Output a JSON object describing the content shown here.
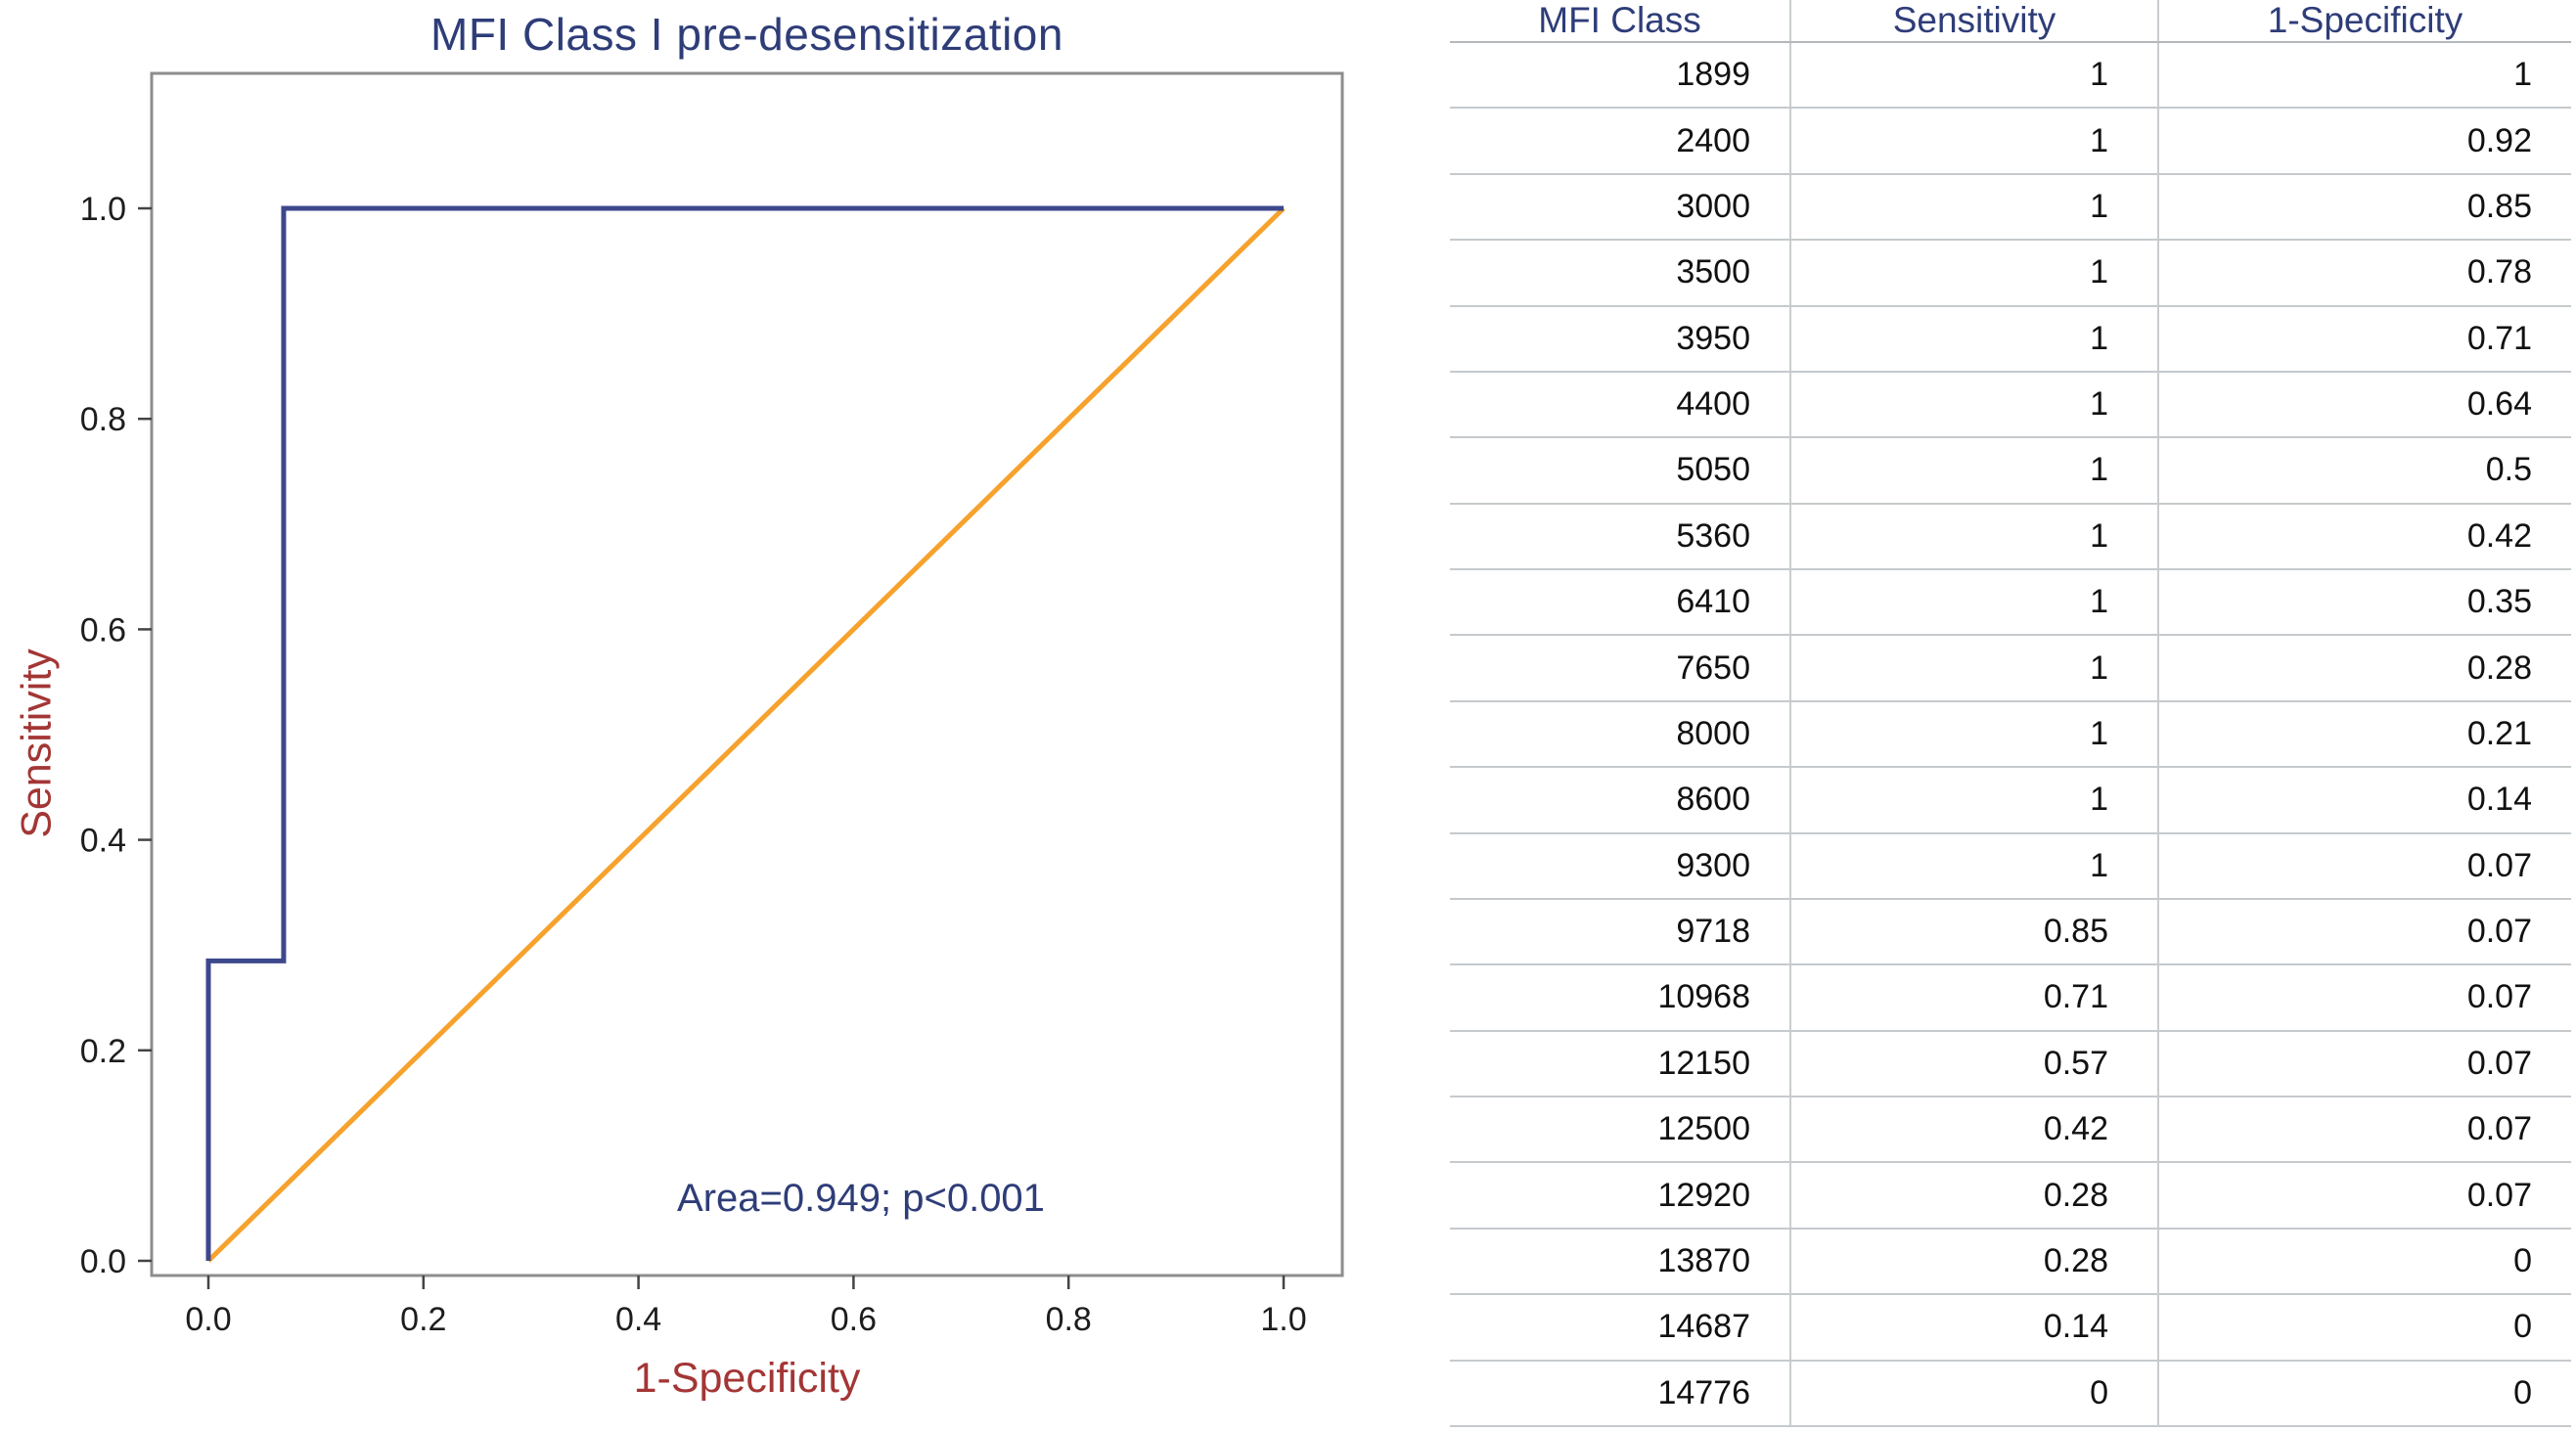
{
  "chart_data": {
    "type": "line",
    "title": "MFI Class I pre-desensitization",
    "xlabel": "1-Specificity",
    "ylabel": "Sensitivity",
    "annotation": "Area=0.949; p<0.001",
    "auc": 0.949,
    "p_value": "<0.001",
    "xlim": [
      0,
      1
    ],
    "ylim": [
      0,
      1
    ],
    "grid": false,
    "legend": "none",
    "x_ticks": [
      "0.0",
      "0.2",
      "0.4",
      "0.6",
      "0.8",
      "1.0"
    ],
    "y_ticks": [
      "0.0",
      "0.2",
      "0.4",
      "0.6",
      "0.8",
      "1.0"
    ],
    "series": [
      {
        "name": "reference-diagonal",
        "color": "#f6a22d",
        "points": [
          [
            0,
            0
          ],
          [
            1,
            1
          ]
        ]
      },
      {
        "name": "roc-curve",
        "color": "#3d478c",
        "points": [
          [
            0,
            0
          ],
          [
            0,
            0.285
          ],
          [
            0.07,
            0.285
          ],
          [
            0.07,
            1
          ],
          [
            1,
            1
          ]
        ]
      }
    ],
    "colors": {
      "title": "#2e3d78",
      "axis_label": "#a33635",
      "annotation": "#2e3d78",
      "plot_border": "#8d8d8d",
      "tick": "#444444"
    }
  },
  "table": {
    "columns": [
      "MFI Class",
      "Sensitivity",
      "1-Specificity"
    ],
    "header_color": "#2e3d78",
    "rows": [
      [
        "1899",
        "1",
        "1"
      ],
      [
        "2400",
        "1",
        "0.92"
      ],
      [
        "3000",
        "1",
        "0.85"
      ],
      [
        "3500",
        "1",
        "0.78"
      ],
      [
        "3950",
        "1",
        "0.71"
      ],
      [
        "4400",
        "1",
        "0.64"
      ],
      [
        "5050",
        "1",
        "0.5"
      ],
      [
        "5360",
        "1",
        "0.42"
      ],
      [
        "6410",
        "1",
        "0.35"
      ],
      [
        "7650",
        "1",
        "0.28"
      ],
      [
        "8000",
        "1",
        "0.21"
      ],
      [
        "8600",
        "1",
        "0.14"
      ],
      [
        "9300",
        "1",
        "0.07"
      ],
      [
        "9718",
        "0.85",
        "0.07"
      ],
      [
        "10968",
        "0.71",
        "0.07"
      ],
      [
        "12150",
        "0.57",
        "0.07"
      ],
      [
        "12500",
        "0.42",
        "0.07"
      ],
      [
        "12920",
        "0.28",
        "0.07"
      ],
      [
        "13870",
        "0.28",
        "0"
      ],
      [
        "14687",
        "0.14",
        "0"
      ],
      [
        "14776",
        "0",
        "0"
      ]
    ]
  }
}
